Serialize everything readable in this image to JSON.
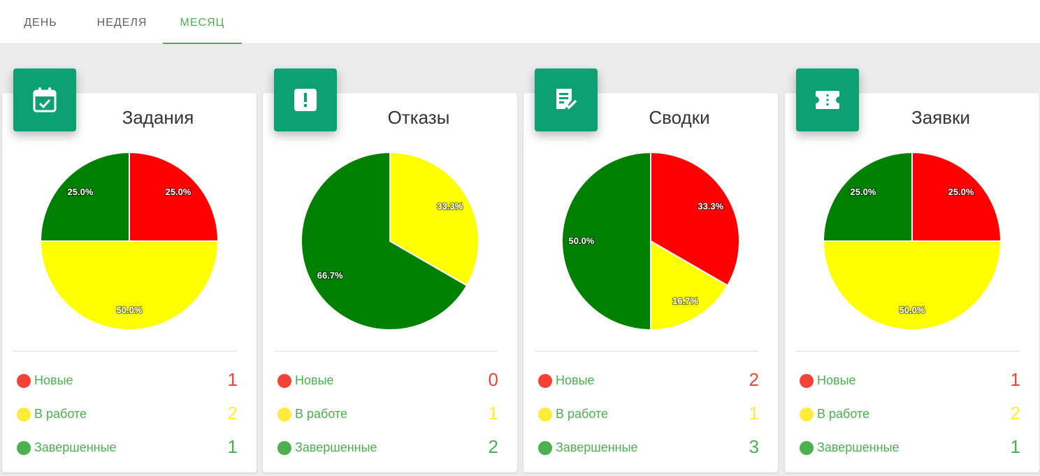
{
  "tabs": [
    {
      "label": "ДЕНЬ",
      "active": false
    },
    {
      "label": "НЕДЕЛЯ",
      "active": false
    },
    {
      "label": "МЕСЯЦ",
      "active": true
    }
  ],
  "colors": {
    "new": "#ff0000",
    "in_progress": "#ffff00",
    "done": "#008000",
    "dot_new": "#f44336",
    "dot_in_progress": "#ffeb3b",
    "dot_done": "#4caf50",
    "accent": "#0ca073"
  },
  "legend_labels": [
    "Новые",
    "В работе",
    "Завершенные"
  ],
  "cards": [
    {
      "title": "Задания",
      "icon": "calendar-check-icon",
      "counts": [
        1,
        2,
        1
      ],
      "slice_labels": [
        "25.0%",
        "50.0%",
        "25.0%"
      ]
    },
    {
      "title": "Отказы",
      "icon": "alert-icon",
      "counts": [
        0,
        1,
        2
      ],
      "slice_labels": [
        "",
        "33.3%",
        "66.7%"
      ]
    },
    {
      "title": "Сводки",
      "icon": "report-check-icon",
      "counts": [
        2,
        1,
        3
      ],
      "slice_labels": [
        "33.3%",
        "16.7%",
        "50.0%"
      ]
    },
    {
      "title": "Заявки",
      "icon": "ticket-icon",
      "counts": [
        1,
        2,
        1
      ],
      "slice_labels": [
        "25.0%",
        "50.0%",
        "25.0%"
      ]
    }
  ],
  "chart_data": [
    {
      "type": "pie",
      "title": "Задания",
      "categories": [
        "Новые",
        "В работе",
        "Завершенные"
      ],
      "values": [
        1,
        2,
        1
      ],
      "percent_labels": [
        "25.0%",
        "50.0%",
        "25.0%"
      ]
    },
    {
      "type": "pie",
      "title": "Отказы",
      "categories": [
        "Новые",
        "В работе",
        "Завершенные"
      ],
      "values": [
        0,
        1,
        2
      ],
      "percent_labels": [
        "",
        "33.3%",
        "66.7%"
      ]
    },
    {
      "type": "pie",
      "title": "Сводки",
      "categories": [
        "Новые",
        "В работе",
        "Завершенные"
      ],
      "values": [
        2,
        1,
        3
      ],
      "percent_labels": [
        "33.3%",
        "16.7%",
        "50.0%"
      ]
    },
    {
      "type": "pie",
      "title": "Заявки",
      "categories": [
        "Новые",
        "В работе",
        "Завершенные"
      ],
      "values": [
        1,
        2,
        1
      ],
      "percent_labels": [
        "25.0%",
        "50.0%",
        "25.0%"
      ]
    }
  ]
}
